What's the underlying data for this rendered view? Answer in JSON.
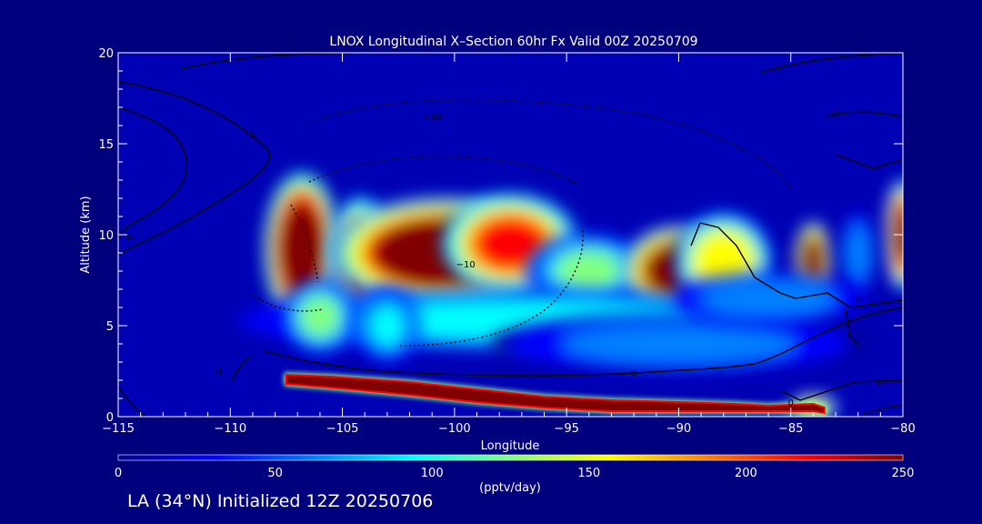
{
  "colors": {
    "background": "#00007f",
    "plot_fill": "#0000b4",
    "axis": "#ffffff",
    "contour": "#000000",
    "colormap": [
      "#00008f",
      "#0000ff",
      "#0080ff",
      "#00ffff",
      "#80ff80",
      "#ffff00",
      "#ff8000",
      "#ff0000",
      "#800000"
    ]
  },
  "chart_data": {
    "type": "heatmap",
    "title": "LNOX Longitudinal X–Section 60hr  Fx Valid 00Z 20250709",
    "xlabel": "Longitude",
    "ylabel": "Altitude (km)",
    "xlim": [
      -115,
      -80
    ],
    "ylim": [
      0,
      20
    ],
    "x_ticks": [
      -115,
      -110,
      -105,
      -100,
      -95,
      -90,
      -85,
      -80
    ],
    "x_tick_labels": [
      "−115",
      "−110",
      "−105",
      "−100",
      "−95",
      "−90",
      "−85",
      "−80"
    ],
    "y_ticks": [
      0,
      5,
      10,
      15,
      20
    ],
    "y_tick_labels": [
      "0",
      "5",
      "10",
      "15",
      "20"
    ],
    "colorbar": {
      "min": 0,
      "max": 250,
      "ticks": [
        0,
        50,
        100,
        150,
        200,
        250
      ],
      "tick_labels": [
        "0",
        "50",
        "100",
        "150",
        "200",
        "250"
      ],
      "label": "(pptv/day)"
    },
    "field_blobs": [
      {
        "lon": -106.8,
        "alt": 9.2,
        "rx": 1.2,
        "ry": 3.0,
        "value": 320
      },
      {
        "lon": -104.2,
        "alt": 8.5,
        "rx": 1.0,
        "ry": 2.6,
        "value": 240
      },
      {
        "lon": -100.5,
        "alt": 9.0,
        "rx": 3.6,
        "ry": 2.2,
        "value": 300
      },
      {
        "lon": -97.5,
        "alt": 9.5,
        "rx": 2.2,
        "ry": 2.0,
        "value": 220
      },
      {
        "lon": -94.0,
        "alt": 8.0,
        "rx": 2.0,
        "ry": 1.5,
        "value": 110
      },
      {
        "lon": -90.0,
        "alt": 8.0,
        "rx": 1.8,
        "ry": 1.8,
        "value": 290
      },
      {
        "lon": -88.0,
        "alt": 8.5,
        "rx": 1.6,
        "ry": 2.0,
        "value": 170
      },
      {
        "lon": -84.0,
        "alt": 8.5,
        "rx": 0.6,
        "ry": 1.6,
        "value": 280
      },
      {
        "lon": -80.0,
        "alt": 10.0,
        "rx": 0.6,
        "ry": 2.2,
        "value": 260
      },
      {
        "lon": -82.0,
        "alt": 9.0,
        "rx": 0.6,
        "ry": 1.8,
        "value": 60
      },
      {
        "lon": -97.0,
        "alt": 5.3,
        "rx": 9.0,
        "ry": 1.2,
        "value": 95
      },
      {
        "lon": -90.0,
        "alt": 4.0,
        "rx": 6.0,
        "ry": 1.2,
        "value": 60
      },
      {
        "lon": -106.0,
        "alt": 5.5,
        "rx": 1.2,
        "ry": 1.5,
        "value": 110
      },
      {
        "lon": -103.0,
        "alt": 5.0,
        "rx": 1.0,
        "ry": 1.5,
        "value": 85
      },
      {
        "lon": -86.0,
        "alt": 6.5,
        "rx": 3.0,
        "ry": 1.0,
        "value": 70
      },
      {
        "lon": -84.0,
        "alt": 0.5,
        "rx": 0.8,
        "ry": 0.5,
        "value": 170
      }
    ],
    "surface_band": {
      "lon": [
        -107.5,
        -105.5,
        -102,
        -99,
        -96,
        -93,
        -90,
        -87.5,
        -86,
        -85,
        -84,
        -83.5
      ],
      "top": [
        2.3,
        2.2,
        1.9,
        1.5,
        1.1,
        0.9,
        0.8,
        0.7,
        0.6,
        0.65,
        0.7,
        0.5
      ],
      "bottom": [
        1.8,
        1.6,
        1.2,
        0.8,
        0.5,
        0.3,
        0.3,
        0.3,
        0.3,
        0.3,
        0.3,
        0.2
      ]
    },
    "contour_labels": [
      {
        "lon": -109.0,
        "alt": 15.3,
        "text": "0"
      },
      {
        "lon": -114.5,
        "alt": 9.7,
        "text": "0"
      },
      {
        "lon": -110.5,
        "alt": 2.3,
        "text": "0"
      },
      {
        "lon": -101.0,
        "alt": 16.3,
        "text": "−10"
      },
      {
        "lon": -99.5,
        "alt": 8.2,
        "text": "−10"
      },
      {
        "lon": -92.0,
        "alt": 2.2,
        "text": "0"
      },
      {
        "lon": -85.5,
        "alt": 18.9,
        "text": "0"
      },
      {
        "lon": -83.0,
        "alt": 16.5,
        "text": "0"
      },
      {
        "lon": -82.0,
        "alt": 6.3,
        "text": "0"
      },
      {
        "lon": -85.0,
        "alt": 0.6,
        "text": "0"
      },
      {
        "lon": -81.0,
        "alt": 1.7,
        "text": "0"
      }
    ]
  },
  "footer": {
    "init_label": "LA (34°N) Initialized 12Z 20250706"
  }
}
